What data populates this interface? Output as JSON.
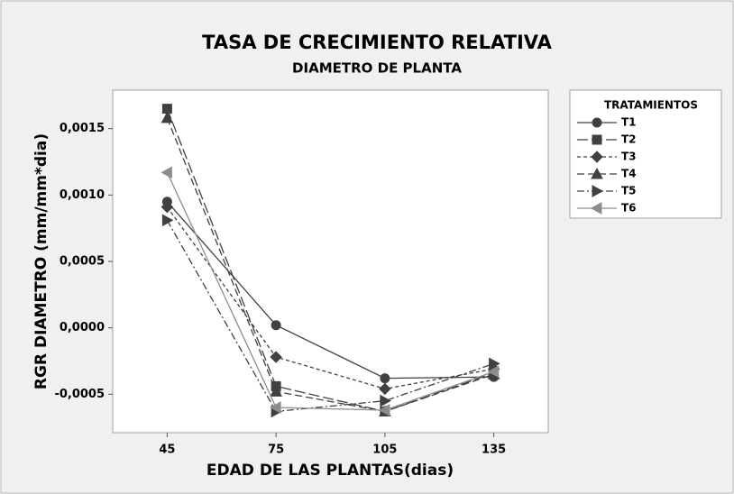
{
  "chart_data": {
    "type": "line",
    "title": "TASA DE CRECIMIENTO RELATIVA",
    "subtitle": "DIAMETRO DE PLANTA",
    "x_label": "EDAD DE LAS PLANTAS(dias)",
    "y_label": "RGR DIAMETRO (mm/mm*dia)",
    "legend_title": "TRATAMIENTOS",
    "legend": "right",
    "x": [
      45,
      75,
      105,
      135
    ],
    "xlim": [
      30,
      150
    ],
    "xticks": [
      45,
      75,
      105,
      135
    ],
    "ylim": [
      -0.00079,
      0.00179
    ],
    "yticks": [
      {
        "value": -0.0005,
        "label": "-0,0005"
      },
      {
        "value": 0,
        "label": "0,0000"
      },
      {
        "value": 0.0005,
        "label": "0,0005"
      },
      {
        "value": 0.001,
        "label": "0,0010"
      },
      {
        "value": 0.0015,
        "label": "0,0015"
      }
    ],
    "series": [
      {
        "name": "T1",
        "color": "#404040",
        "marker": "circle",
        "dash": "solid",
        "values": [
          0.00095,
          2e-05,
          -0.00038,
          -0.00037
        ]
      },
      {
        "name": "T2",
        "color": "#404040",
        "marker": "square",
        "dash": "long-dash",
        "values": [
          0.00165,
          -0.00044,
          -0.00063,
          -0.00034
        ]
      },
      {
        "name": "T3",
        "color": "#404040",
        "marker": "diamond",
        "dash": "short-dash",
        "values": [
          0.00091,
          -0.00022,
          -0.00046,
          -0.00031
        ]
      },
      {
        "name": "T4",
        "color": "#404040",
        "marker": "triangle-up",
        "dash": "dash",
        "values": [
          0.00158,
          -0.00048,
          -0.00063,
          -0.00035
        ]
      },
      {
        "name": "T5",
        "color": "#404040",
        "marker": "triangle-right",
        "dash": "dash-dot",
        "values": [
          0.00081,
          -0.00063,
          -0.00055,
          -0.00027
        ]
      },
      {
        "name": "T6",
        "color": "#8c8c8c",
        "marker": "triangle-left",
        "dash": "solid",
        "values": [
          0.00117,
          -0.0006,
          -0.00062,
          -0.00033
        ]
      }
    ]
  }
}
